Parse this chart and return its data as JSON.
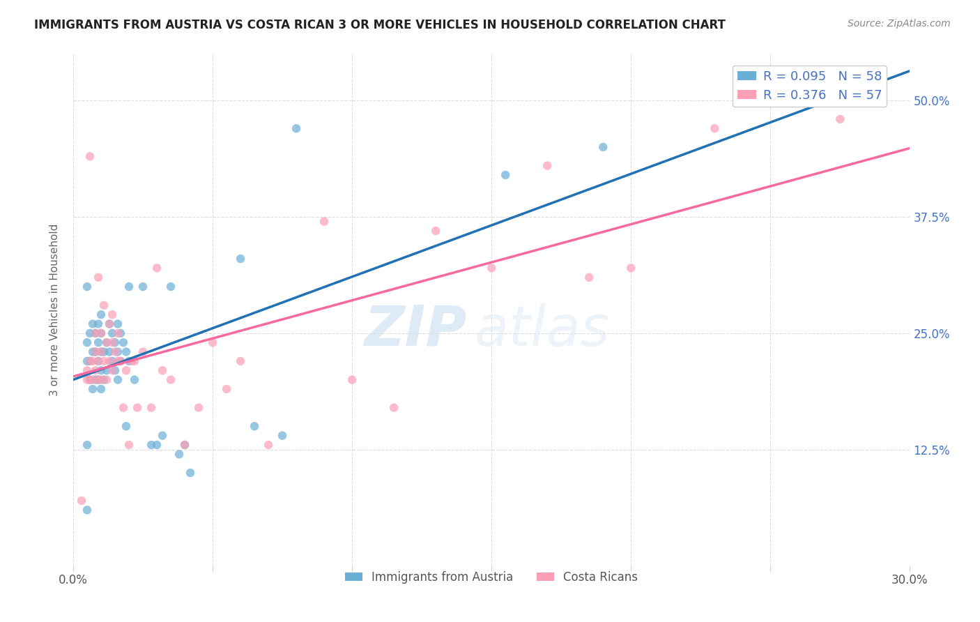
{
  "title": "IMMIGRANTS FROM AUSTRIA VS COSTA RICAN 3 OR MORE VEHICLES IN HOUSEHOLD CORRELATION CHART",
  "source": "Source: ZipAtlas.com",
  "ylabel": "3 or more Vehicles in Household",
  "xlim": [
    0.0,
    0.3
  ],
  "ylim": [
    0.0,
    0.55
  ],
  "xticks": [
    0.0,
    0.05,
    0.1,
    0.15,
    0.2,
    0.25,
    0.3
  ],
  "xticklabels": [
    "0.0%",
    "",
    "",
    "",
    "",
    "",
    "30.0%"
  ],
  "yticks": [
    0.0,
    0.125,
    0.25,
    0.375,
    0.5
  ],
  "yticklabels": [
    "",
    "12.5%",
    "25.0%",
    "37.5%",
    "50.0%"
  ],
  "legend_r1": "R = 0.095",
  "legend_n1": "N = 58",
  "legend_r2": "R = 0.376",
  "legend_n2": "N = 57",
  "blue_color": "#6baed6",
  "pink_color": "#fa9fb5",
  "blue_line_color": "#2171b5",
  "pink_line_color": "#f768a1",
  "dashed_line_color": "#aaaaaa",
  "scatter_alpha": 0.7,
  "marker_size": 80,
  "austria_x": [
    0.005,
    0.005,
    0.005,
    0.005,
    0.005,
    0.006,
    0.006,
    0.006,
    0.007,
    0.007,
    0.007,
    0.008,
    0.008,
    0.008,
    0.009,
    0.009,
    0.009,
    0.009,
    0.01,
    0.01,
    0.01,
    0.01,
    0.01,
    0.011,
    0.011,
    0.012,
    0.012,
    0.013,
    0.013,
    0.014,
    0.014,
    0.015,
    0.015,
    0.016,
    0.016,
    0.016,
    0.017,
    0.017,
    0.018,
    0.019,
    0.019,
    0.02,
    0.02,
    0.022,
    0.025,
    0.028,
    0.03,
    0.032,
    0.035,
    0.038,
    0.04,
    0.042,
    0.06,
    0.065,
    0.075,
    0.08,
    0.155,
    0.19
  ],
  "austria_y": [
    0.13,
    0.22,
    0.24,
    0.3,
    0.06,
    0.2,
    0.22,
    0.25,
    0.19,
    0.23,
    0.26,
    0.2,
    0.23,
    0.25,
    0.2,
    0.22,
    0.24,
    0.26,
    0.19,
    0.21,
    0.23,
    0.25,
    0.27,
    0.2,
    0.23,
    0.21,
    0.24,
    0.23,
    0.26,
    0.22,
    0.25,
    0.21,
    0.24,
    0.2,
    0.23,
    0.26,
    0.22,
    0.25,
    0.24,
    0.15,
    0.23,
    0.22,
    0.3,
    0.2,
    0.3,
    0.13,
    0.13,
    0.14,
    0.3,
    0.12,
    0.13,
    0.1,
    0.33,
    0.15,
    0.14,
    0.47,
    0.42,
    0.45
  ],
  "costarican_x": [
    0.003,
    0.005,
    0.005,
    0.006,
    0.006,
    0.006,
    0.007,
    0.007,
    0.008,
    0.008,
    0.008,
    0.009,
    0.009,
    0.009,
    0.01,
    0.01,
    0.01,
    0.011,
    0.011,
    0.012,
    0.012,
    0.013,
    0.013,
    0.014,
    0.014,
    0.014,
    0.015,
    0.016,
    0.016,
    0.017,
    0.018,
    0.019,
    0.02,
    0.021,
    0.022,
    0.023,
    0.025,
    0.028,
    0.03,
    0.032,
    0.035,
    0.04,
    0.045,
    0.05,
    0.055,
    0.06,
    0.07,
    0.09,
    0.1,
    0.115,
    0.13,
    0.15,
    0.17,
    0.185,
    0.2,
    0.23,
    0.275
  ],
  "costarican_y": [
    0.07,
    0.2,
    0.21,
    0.44,
    0.2,
    0.22,
    0.2,
    0.22,
    0.21,
    0.23,
    0.25,
    0.2,
    0.22,
    0.31,
    0.2,
    0.23,
    0.25,
    0.22,
    0.28,
    0.2,
    0.24,
    0.22,
    0.26,
    0.21,
    0.24,
    0.27,
    0.23,
    0.22,
    0.25,
    0.22,
    0.17,
    0.21,
    0.13,
    0.22,
    0.22,
    0.17,
    0.23,
    0.17,
    0.32,
    0.21,
    0.2,
    0.13,
    0.17,
    0.24,
    0.19,
    0.22,
    0.13,
    0.37,
    0.2,
    0.17,
    0.36,
    0.32,
    0.43,
    0.31,
    0.32,
    0.47,
    0.48
  ],
  "watermark_zip": "ZIP",
  "watermark_atlas": "atlas",
  "background_color": "#ffffff",
  "grid_color": "#dddddd",
  "tick_label_color": "#4472c4",
  "ylabel_color": "#666666",
  "title_color": "#222222",
  "source_color": "#888888"
}
